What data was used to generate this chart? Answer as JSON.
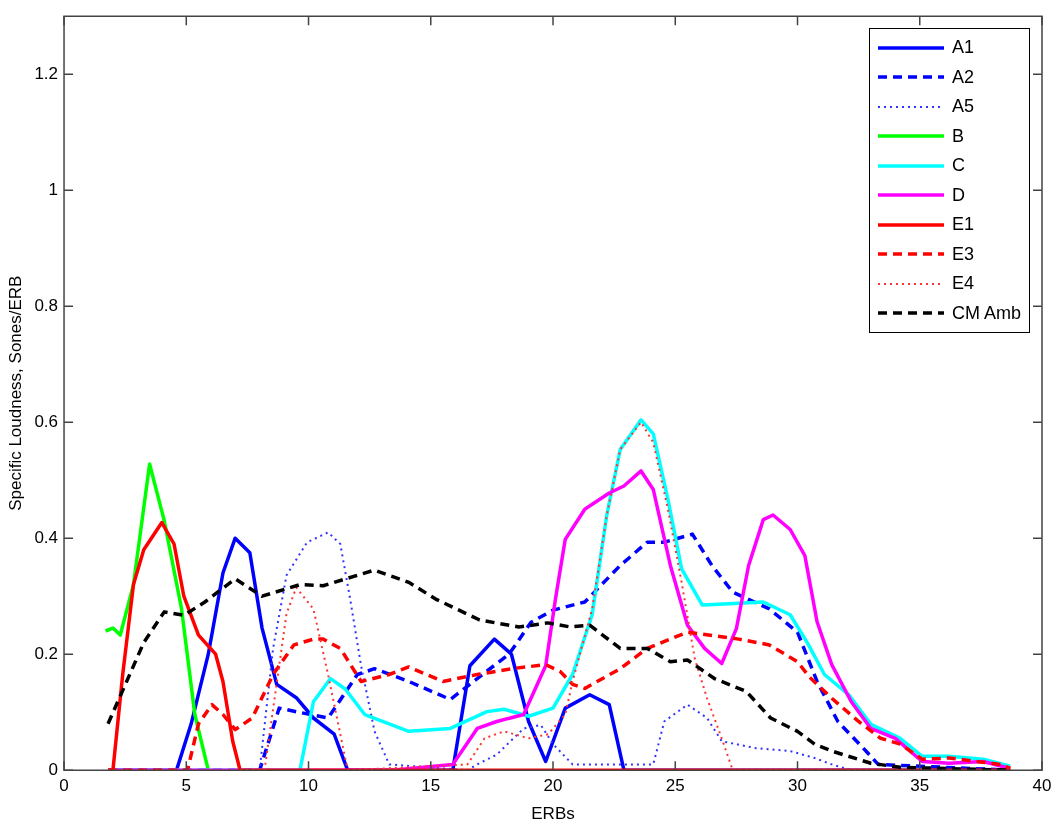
{
  "chart_data": {
    "type": "line",
    "xlabel": "ERBs",
    "ylabel": "Specific Loudness, Sones/ERB",
    "xlim": [
      0,
      40
    ],
    "xticks": [
      0,
      5,
      10,
      15,
      20,
      25,
      30,
      35,
      40
    ],
    "ylim": [
      0,
      1.3
    ],
    "yticks": [
      0,
      0.2,
      0.4,
      0.6,
      0.8,
      1,
      1.2
    ],
    "grid": false,
    "legend": "top right",
    "series": [
      {
        "name": "A1",
        "color": "#0000ff",
        "line_style": "solid",
        "x": [
          1.8,
          4.6,
          5.2,
          5.9,
          6.5,
          7.0,
          7.6,
          8.1,
          8.7,
          9.5,
          10.2,
          11.05,
          11.6,
          15.9,
          16.6,
          17.6,
          18.3,
          19.0,
          19.7,
          20.5,
          21.5,
          22.3,
          22.9,
          38.7
        ],
        "values": [
          0,
          0,
          0.08,
          0.2,
          0.34,
          0.4,
          0.375,
          0.245,
          0.148,
          0.125,
          0.09,
          0.062,
          0,
          0,
          0.18,
          0.226,
          0.2,
          0.084,
          0.015,
          0.107,
          0.13,
          0.113,
          0,
          0
        ]
      },
      {
        "name": "A2",
        "color": "#0000ff",
        "line_style": "dashed",
        "x": [
          1.8,
          8.0,
          8.8,
          9.6,
          10.8,
          12.0,
          12.7,
          14.1,
          15.8,
          16.9,
          18.2,
          19.1,
          20.0,
          21.3,
          22.75,
          23.85,
          24.55,
          25.7,
          26.5,
          27.35,
          28.85,
          30.0,
          30.8,
          31.65,
          32.8,
          33.3,
          38.7
        ],
        "values": [
          0,
          0,
          0.107,
          0.1,
          0.09,
          0.165,
          0.175,
          0.153,
          0.122,
          0.158,
          0.2,
          0.255,
          0.276,
          0.29,
          0.353,
          0.393,
          0.393,
          0.407,
          0.353,
          0.307,
          0.278,
          0.238,
          0.153,
          0.084,
          0.033,
          0.01,
          0
        ]
      },
      {
        "name": "A5",
        "color": "#3333ff",
        "line_style": "dotted",
        "x": [
          1.8,
          8.0,
          8.55,
          9.1,
          9.94,
          10.8,
          11.3,
          11.7,
          12.15,
          12.7,
          13.3,
          16.5,
          16.9,
          17.7,
          18.8,
          19.5,
          20.0,
          20.8,
          24.1,
          24.55,
          25.5,
          26.3,
          26.9,
          28.3,
          29.7,
          30.7,
          31.4,
          32.2,
          38.7
        ],
        "values": [
          0,
          0,
          0.21,
          0.336,
          0.393,
          0.41,
          0.39,
          0.296,
          0.18,
          0.067,
          0.01,
          0,
          0.01,
          0.027,
          0.072,
          0.078,
          0.045,
          0.01,
          0.01,
          0.084,
          0.113,
          0.09,
          0.05,
          0.038,
          0.033,
          0.021,
          0.01,
          0,
          0
        ]
      },
      {
        "name": "B",
        "color": "#00ff00",
        "line_style": "solid",
        "x": [
          1.7,
          2.0,
          2.3,
          2.84,
          3.5,
          4.1,
          4.8,
          5.35,
          5.9
        ],
        "values": [
          0.24,
          0.245,
          0.233,
          0.32,
          0.528,
          0.43,
          0.28,
          0.096,
          0
        ]
      },
      {
        "name": "C",
        "color": "#00ffff",
        "line_style": "solid",
        "x": [
          1.8,
          9.65,
          10.2,
          10.9,
          11.5,
          12.3,
          14.1,
          15.8,
          17.3,
          18.0,
          19.0,
          20.0,
          20.8,
          21.6,
          22.2,
          22.75,
          23.6,
          24.1,
          24.7,
          25.26,
          26.1,
          27.2,
          28.6,
          29.7,
          30.4,
          31.1,
          32.1,
          33.0,
          34.2,
          35.1,
          36.2,
          37.6,
          38.7
        ],
        "values": [
          0,
          0,
          0.118,
          0.158,
          0.14,
          0.096,
          0.067,
          0.072,
          0.101,
          0.105,
          0.093,
          0.107,
          0.165,
          0.268,
          0.44,
          0.553,
          0.604,
          0.58,
          0.467,
          0.347,
          0.285,
          0.287,
          0.29,
          0.268,
          0.22,
          0.165,
          0.13,
          0.079,
          0.055,
          0.024,
          0.024,
          0.019,
          0.007
        ]
      },
      {
        "name": "D",
        "color": "#ff00ff",
        "line_style": "solid",
        "x": [
          1.8,
          13.4,
          15.9,
          16.9,
          17.7,
          18.8,
          19.7,
          20.1,
          20.5,
          21.3,
          22.3,
          22.9,
          23.6,
          24.1,
          24.8,
          25.5,
          26.2,
          26.9,
          27.5,
          28.0,
          28.6,
          29.0,
          29.7,
          30.3,
          30.8,
          31.4,
          32.2,
          33.0,
          34.0,
          35.1,
          36.2,
          37.6,
          38.7
        ],
        "values": [
          0,
          0,
          0.01,
          0.072,
          0.084,
          0.096,
          0.18,
          0.295,
          0.398,
          0.45,
          0.478,
          0.49,
          0.516,
          0.484,
          0.353,
          0.25,
          0.21,
          0.184,
          0.244,
          0.353,
          0.432,
          0.44,
          0.415,
          0.37,
          0.256,
          0.182,
          0.118,
          0.072,
          0.055,
          0.015,
          0.012,
          0.015,
          0.003
        ]
      },
      {
        "name": "E1",
        "color": "#ff0000",
        "line_style": "solid",
        "x": [
          1.8,
          2.0,
          2.4,
          2.84,
          3.26,
          4.0,
          4.5,
          4.9,
          5.5,
          6.2,
          6.5,
          6.9,
          7.2,
          38.7
        ],
        "values": [
          0,
          0,
          0.165,
          0.32,
          0.38,
          0.427,
          0.39,
          0.3,
          0.233,
          0.2,
          0.153,
          0.05,
          0,
          0
        ]
      },
      {
        "name": "E3",
        "color": "#ff0000",
        "line_style": "dashed",
        "x": [
          1.8,
          5.05,
          5.5,
          6.05,
          6.5,
          7.0,
          7.7,
          8.55,
          9.4,
          10.2,
          10.6,
          11.3,
          12.15,
          13.3,
          14.1,
          15.5,
          16.9,
          18.3,
          19.7,
          20.3,
          20.8,
          21.3,
          22.75,
          23.85,
          25.5,
          27.6,
          28.85,
          30.0,
          30.5,
          31.4,
          32.5,
          33.4,
          34.2,
          35.1,
          36.2,
          38.3,
          38.7
        ],
        "values": [
          0,
          0,
          0.08,
          0.113,
          0.096,
          0.07,
          0.09,
          0.165,
          0.216,
          0.226,
          0.226,
          0.21,
          0.153,
          0.165,
          0.178,
          0.153,
          0.165,
          0.175,
          0.182,
          0.17,
          0.148,
          0.141,
          0.175,
          0.21,
          0.238,
          0.226,
          0.216,
          0.187,
          0.16,
          0.124,
          0.084,
          0.055,
          0.045,
          0.019,
          0.021,
          0.01,
          0.003
        ]
      },
      {
        "name": "E4",
        "color": "#ff3333",
        "line_style": "dotted",
        "x": [
          1.8,
          8.2,
          8.7,
          9.1,
          9.5,
          10.2,
          10.8,
          11.3,
          11.6,
          16.5,
          17.2,
          18.0,
          19.0,
          19.8,
          20.5,
          20.8,
          21.6,
          22.2,
          22.75,
          23.6,
          24.1,
          24.7,
          25.26,
          25.8,
          26.3,
          26.9,
          27.35,
          38.7
        ],
        "values": [
          0,
          0,
          0.15,
          0.27,
          0.315,
          0.278,
          0.165,
          0.062,
          0,
          0.01,
          0.055,
          0.067,
          0.055,
          0.062,
          0.096,
          0.153,
          0.278,
          0.44,
          0.553,
          0.6,
          0.565,
          0.45,
          0.324,
          0.192,
          0.124,
          0.055,
          0,
          0
        ]
      },
      {
        "name": "CM Amb",
        "color": "#000000",
        "line_style": "dashed",
        "x": [
          1.8,
          3.26,
          4.1,
          4.9,
          5.76,
          7.0,
          8.1,
          9.65,
          10.6,
          12.7,
          14.1,
          15.2,
          17.0,
          18.6,
          19.8,
          20.7,
          21.5,
          22.75,
          23.85,
          24.8,
          25.5,
          26.6,
          27.9,
          28.9,
          30.0,
          30.7,
          31.4,
          33.0,
          34.2,
          38.7
        ],
        "values": [
          0.08,
          0.22,
          0.273,
          0.267,
          0.29,
          0.33,
          0.3,
          0.32,
          0.318,
          0.345,
          0.324,
          0.295,
          0.259,
          0.247,
          0.254,
          0.247,
          0.25,
          0.21,
          0.21,
          0.187,
          0.19,
          0.158,
          0.136,
          0.09,
          0.067,
          0.045,
          0.033,
          0.012,
          0.005,
          0
        ]
      }
    ]
  }
}
